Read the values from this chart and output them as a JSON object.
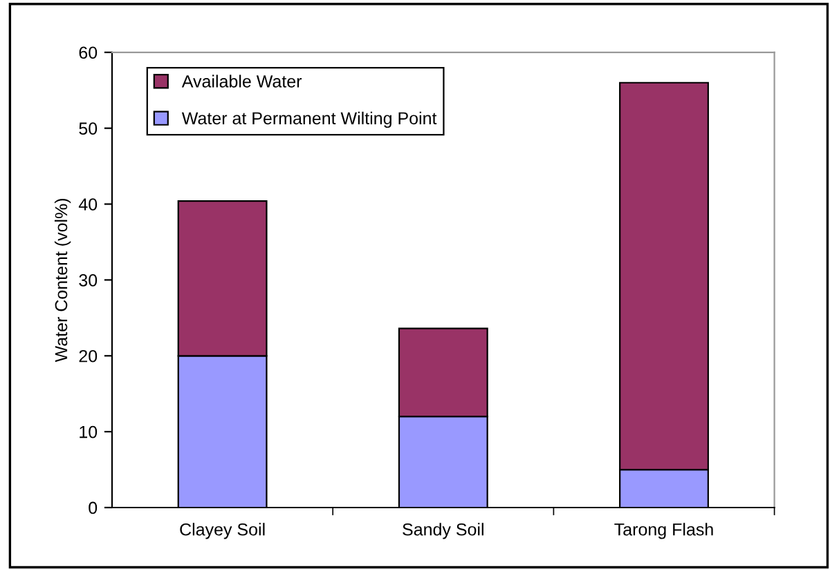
{
  "chart_data": {
    "type": "bar",
    "stacked": true,
    "ylabel": "Water Content (vol%)",
    "categories": [
      "Clayey Soil",
      "Sandy Soil",
      "Tarong Flash"
    ],
    "series": [
      {
        "name": "Water at Permanent Wilting Point",
        "color": "#9999ff",
        "values": [
          20,
          12,
          5
        ]
      },
      {
        "name": "Available Water",
        "color": "#993366",
        "values": [
          20.4,
          11.6,
          51
        ]
      }
    ],
    "ylim": [
      0,
      60
    ],
    "yticks": [
      0,
      10,
      20,
      30,
      40,
      50,
      60
    ],
    "grid": false,
    "legend": "top left"
  }
}
